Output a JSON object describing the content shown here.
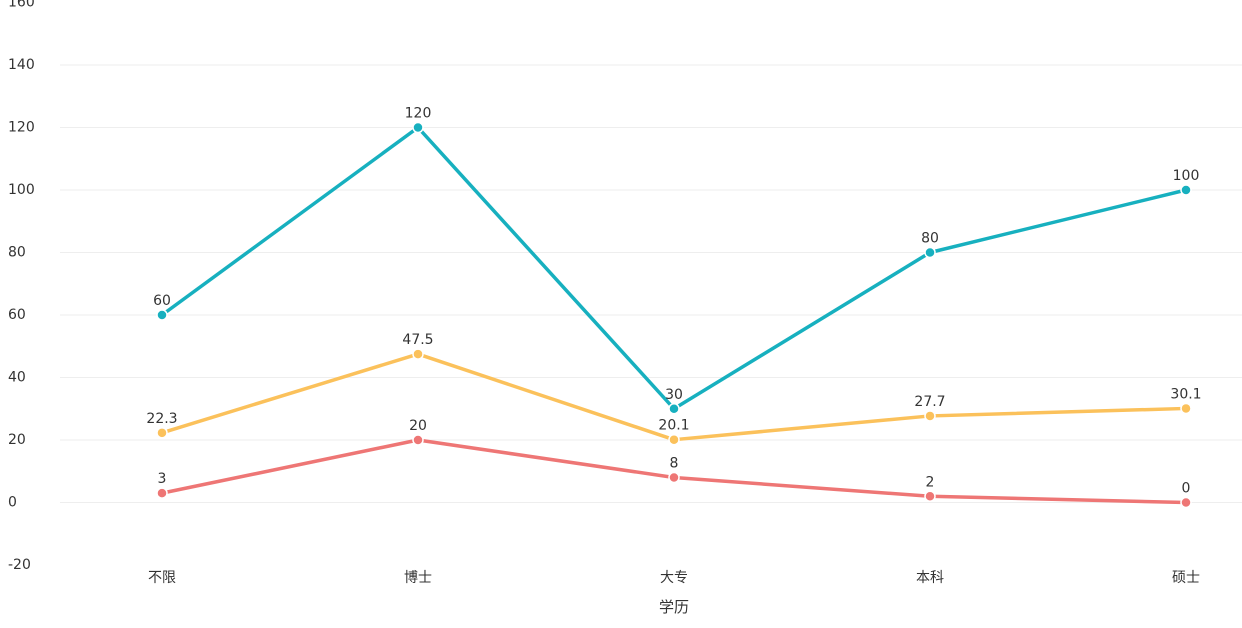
{
  "chart_data": {
    "type": "line",
    "categories": [
      "不限",
      "博士",
      "大专",
      "本科",
      "硕士"
    ],
    "series": [
      {
        "values": [
          60,
          120,
          30,
          80,
          100
        ],
        "color": "#17B0BF"
      },
      {
        "values": [
          22.3,
          47.5,
          20.1,
          27.7,
          30.1
        ],
        "color": "#FBC15B"
      },
      {
        "values": [
          3,
          20,
          8,
          2,
          0
        ],
        "color": "#EE7675"
      }
    ],
    "xlabel": "学历",
    "ylabel": "",
    "ylim": [
      -20,
      160
    ],
    "yticks": [
      -20,
      0,
      20,
      40,
      60,
      80,
      100,
      120,
      140,
      160
    ],
    "grid": true,
    "data_labels": true
  }
}
